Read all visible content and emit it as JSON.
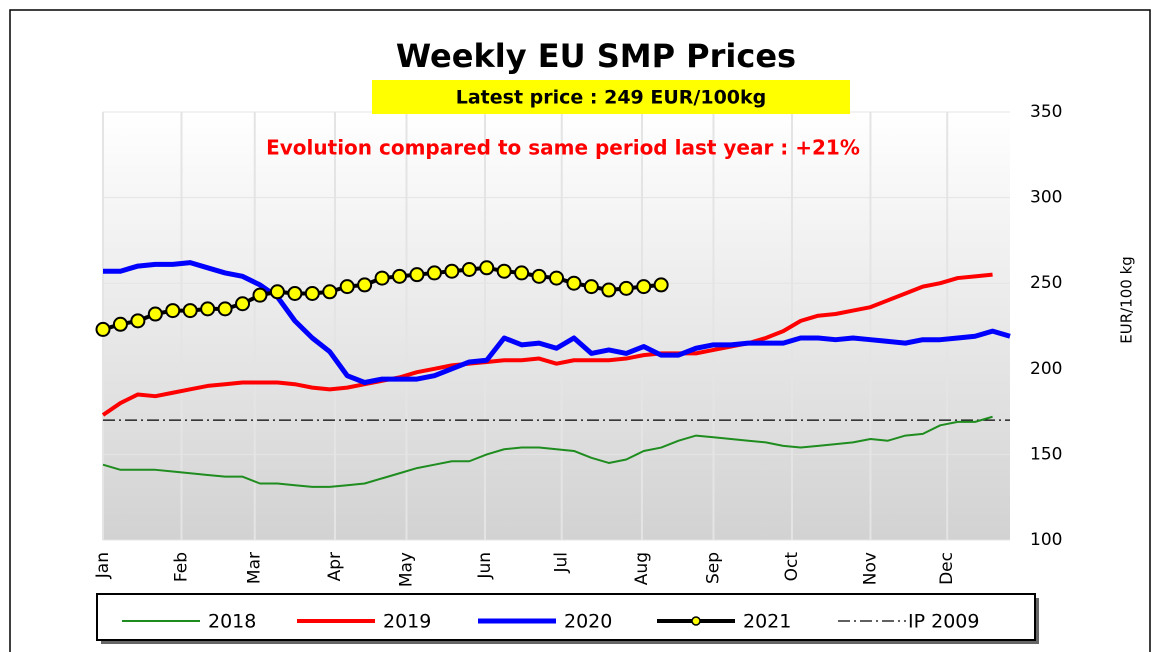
{
  "chart_data": {
    "type": "line",
    "title": "Weekly EU SMP Prices",
    "subtitle": "Latest price : 249 EUR/100kg",
    "annotation": "Evolution compared to same period last year : +21%",
    "y_axis_label": "EUR/100 kg",
    "x": [
      1,
      2,
      3,
      4,
      5,
      6,
      7,
      8,
      9,
      10,
      11,
      12,
      13,
      14,
      15,
      16,
      17,
      18,
      19,
      20,
      21,
      22,
      23,
      24,
      25,
      26,
      27,
      28,
      29,
      30,
      31,
      32,
      33,
      34,
      35,
      36,
      37,
      38,
      39,
      40,
      41,
      42,
      43,
      44,
      45,
      46,
      47,
      48,
      49,
      50,
      51,
      52,
      53
    ],
    "xlim": [
      1,
      53
    ],
    "xticks": [
      {
        "value": 1,
        "label": "Jan"
      },
      {
        "value": 5.5,
        "label": "Feb"
      },
      {
        "value": 9.7,
        "label": "Mar"
      },
      {
        "value": 14.3,
        "label": "Apr"
      },
      {
        "value": 18.4,
        "label": "May"
      },
      {
        "value": 22.9,
        "label": "Jun"
      },
      {
        "value": 27.3,
        "label": "Jul"
      },
      {
        "value": 31.9,
        "label": "Aug"
      },
      {
        "value": 36,
        "label": "Sep"
      },
      {
        "value": 40.5,
        "label": "Oct"
      },
      {
        "value": 45,
        "label": "Nov"
      },
      {
        "value": 49.4,
        "label": "Dec"
      }
    ],
    "ylim": [
      100,
      350
    ],
    "yticks": [
      100,
      150,
      200,
      250,
      300,
      350
    ],
    "grid": true,
    "series": [
      {
        "name": "2018",
        "color": "#1e8c1e",
        "width": 2,
        "values": [
          144,
          141,
          141,
          141,
          140,
          139,
          138,
          137,
          137,
          133,
          133,
          132,
          131,
          131,
          132,
          133,
          136,
          139,
          142,
          144,
          146,
          146,
          150,
          153,
          154,
          154,
          153,
          152,
          148,
          145,
          147,
          152,
          154,
          158,
          161,
          160,
          159,
          158,
          157,
          155,
          154,
          155,
          156,
          157,
          159,
          158,
          161,
          162,
          167,
          169,
          169,
          172,
          null
        ]
      },
      {
        "name": "2019",
        "color": "#ff0000",
        "width": 4,
        "values": [
          173,
          180,
          185,
          184,
          186,
          188,
          190,
          191,
          192,
          192,
          192,
          191,
          189,
          188,
          189,
          191,
          193,
          195,
          198,
          200,
          202,
          203,
          204,
          205,
          205,
          206,
          203,
          205,
          205,
          205,
          206,
          208,
          209,
          209,
          209,
          211,
          213,
          215,
          218,
          222,
          228,
          231,
          232,
          234,
          236,
          240,
          244,
          248,
          250,
          253,
          254,
          255,
          null
        ]
      },
      {
        "name": "2020",
        "color": "#0000ff",
        "width": 5,
        "values": [
          257,
          257,
          260,
          261,
          261,
          262,
          259,
          256,
          254,
          249,
          242,
          228,
          218,
          210,
          196,
          192,
          194,
          194,
          194,
          196,
          200,
          204,
          205,
          218,
          214,
          215,
          212,
          218,
          209,
          211,
          209,
          213,
          208,
          208,
          212,
          214,
          214,
          215,
          215,
          215,
          218,
          218,
          217,
          218,
          217,
          216,
          215,
          217,
          217,
          218,
          219,
          222,
          219
        ]
      },
      {
        "name": "2021",
        "color": "#000000",
        "marker_color": "#ffff00",
        "width": 4,
        "markers": true,
        "values": [
          223,
          226,
          228,
          232,
          234,
          234,
          235,
          235,
          238,
          243,
          245,
          244,
          244,
          245,
          248,
          249,
          253,
          254,
          255,
          256,
          257,
          258,
          259,
          257,
          256,
          254,
          253,
          250,
          248,
          246,
          247,
          248,
          249,
          null,
          null,
          null,
          null,
          null,
          null,
          null,
          null,
          null,
          null,
          null,
          null,
          null,
          null,
          null,
          null,
          null,
          null,
          null,
          null
        ]
      }
    ],
    "hline": {
      "name": "IP 2009",
      "value": 170,
      "color": "#000000"
    }
  }
}
